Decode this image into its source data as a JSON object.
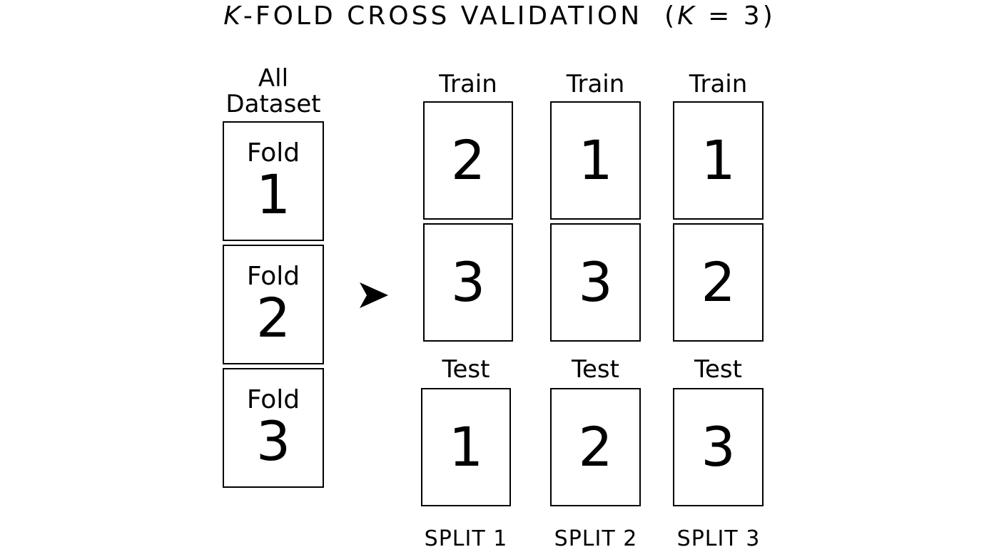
{
  "title": {
    "k": "K",
    "main": "-FOLD CROSS VALIDATION  (",
    "k2": "K",
    "end": " = 3)"
  },
  "dataset": {
    "label": "All\nDataset",
    "folds": [
      {
        "word": "Fold",
        "num": "1"
      },
      {
        "word": "Fold",
        "num": "2"
      },
      {
        "word": "Fold",
        "num": "3"
      }
    ]
  },
  "splits": [
    {
      "train_label": "Train",
      "train": [
        "2",
        "3"
      ],
      "test_label": "Test",
      "test": "1",
      "name": "SPLIT 1"
    },
    {
      "train_label": "Train",
      "train": [
        "1",
        "3"
      ],
      "test_label": "Test",
      "test": "2",
      "name": "SPLIT 2"
    },
    {
      "train_label": "Train",
      "train": [
        "1",
        "2"
      ],
      "test_label": "Test",
      "test": "3",
      "name": "SPLIT 3"
    }
  ],
  "icons": {
    "arrow": "right-arrowhead-icon"
  }
}
